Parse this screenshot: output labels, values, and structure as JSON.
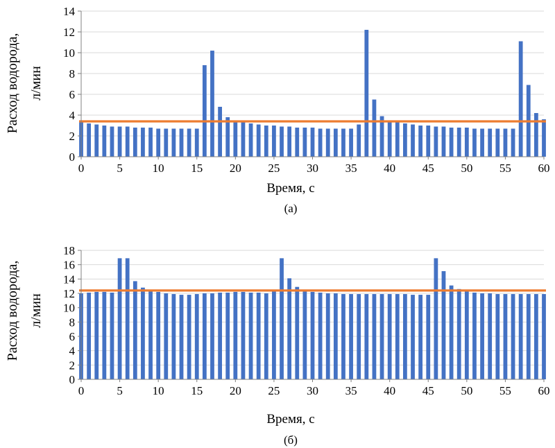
{
  "colors": {
    "bar": "#4472C4",
    "mean_line": "#ED7D31",
    "axis": "#808080",
    "grid": "#d9d9d9"
  },
  "chart_data": [
    {
      "type": "bar",
      "caption": "(а)",
      "xlabel": "Время, с",
      "ylabel_lines": [
        "Расход водорода,",
        "л/мин"
      ],
      "xlim": [
        0,
        60
      ],
      "ylim": [
        0,
        14
      ],
      "x_ticks": [
        0,
        5,
        10,
        15,
        20,
        25,
        30,
        35,
        40,
        45,
        50,
        55,
        60
      ],
      "y_ticks": [
        0,
        2,
        4,
        6,
        8,
        10,
        12,
        14
      ],
      "mean_line": 3.4,
      "series": [
        {
          "x": [
            0,
            1,
            2,
            3,
            4,
            5,
            6,
            7,
            8,
            9,
            10,
            11,
            12,
            13,
            14,
            15,
            16,
            17,
            18,
            19,
            20,
            21,
            22,
            23,
            24,
            25,
            26,
            27,
            28,
            29,
            30,
            31,
            32,
            33,
            34,
            35,
            36,
            37,
            38,
            39,
            40,
            41,
            42,
            43,
            44,
            45,
            46,
            47,
            48,
            49,
            50,
            51,
            52,
            53,
            54,
            55,
            56,
            57,
            58,
            59,
            60
          ],
          "values": [
            3.3,
            3.2,
            3.1,
            3.0,
            2.9,
            2.9,
            2.9,
            2.8,
            2.8,
            2.8,
            2.7,
            2.7,
            2.7,
            2.7,
            2.7,
            2.7,
            8.8,
            10.2,
            4.8,
            3.8,
            3.4,
            3.3,
            3.2,
            3.1,
            3.0,
            3.0,
            2.9,
            2.9,
            2.8,
            2.8,
            2.8,
            2.7,
            2.7,
            2.7,
            2.7,
            2.7,
            3.1,
            12.2,
            5.5,
            3.9,
            3.5,
            3.3,
            3.2,
            3.1,
            3.0,
            3.0,
            2.9,
            2.9,
            2.8,
            2.8,
            2.8,
            2.7,
            2.7,
            2.7,
            2.7,
            2.7,
            2.7,
            11.1,
            6.9,
            4.2,
            3.6
          ]
        }
      ]
    },
    {
      "type": "bar",
      "caption": "(б)",
      "xlabel": "Время, с",
      "ylabel_lines": [
        "Расход водорода,",
        "л/мин"
      ],
      "xlim": [
        0,
        60
      ],
      "ylim": [
        0,
        18
      ],
      "x_ticks": [
        0,
        5,
        10,
        15,
        20,
        25,
        30,
        35,
        40,
        45,
        50,
        55,
        60
      ],
      "y_ticks": [
        0,
        2,
        4,
        6,
        8,
        10,
        12,
        14,
        16,
        18
      ],
      "mean_line": 12.4,
      "series": [
        {
          "x": [
            0,
            1,
            2,
            3,
            4,
            5,
            6,
            7,
            8,
            9,
            10,
            11,
            12,
            13,
            14,
            15,
            16,
            17,
            18,
            19,
            20,
            21,
            22,
            23,
            24,
            25,
            26,
            27,
            28,
            29,
            30,
            31,
            32,
            33,
            34,
            35,
            36,
            37,
            38,
            39,
            40,
            41,
            42,
            43,
            44,
            45,
            46,
            47,
            48,
            49,
            50,
            51,
            52,
            53,
            54,
            55,
            56,
            57,
            58,
            59,
            60
          ],
          "values": [
            12.0,
            12.1,
            12.2,
            12.2,
            12.1,
            16.9,
            16.9,
            13.7,
            12.8,
            12.4,
            12.2,
            12.0,
            11.9,
            11.8,
            11.8,
            11.9,
            12.0,
            12.0,
            12.1,
            12.1,
            12.2,
            12.2,
            12.1,
            12.1,
            12.0,
            12.4,
            16.9,
            14.1,
            12.9,
            12.4,
            12.2,
            12.1,
            12.0,
            12.0,
            11.9,
            11.9,
            11.9,
            11.9,
            11.9,
            11.9,
            11.9,
            11.9,
            11.9,
            11.8,
            11.8,
            11.8,
            16.9,
            15.1,
            13.1,
            12.6,
            12.3,
            12.1,
            12.0,
            12.0,
            11.9,
            11.9,
            11.9,
            11.9,
            11.9,
            11.9,
            11.9
          ]
        }
      ]
    }
  ]
}
